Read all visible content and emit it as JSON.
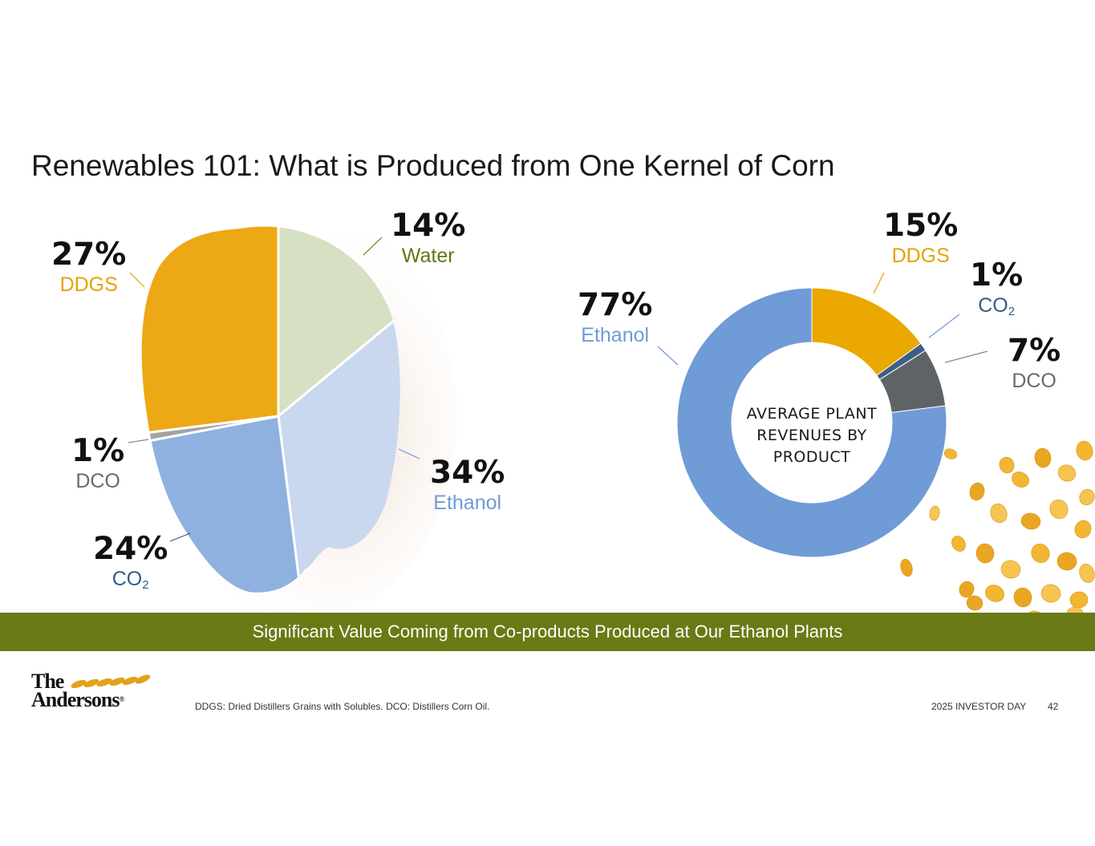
{
  "title": "Renewables 101: What is Produced from One Kernel of Corn",
  "chart_data": [
    {
      "type": "pie",
      "slices": [
        {
          "label": "Water",
          "value": 14,
          "pct_text": "14%",
          "color": "#d6e0c2"
        },
        {
          "label": "Ethanol",
          "value": 34,
          "pct_text": "34%",
          "color": "#c9d7ef"
        },
        {
          "label": "CO2",
          "value": 24,
          "pct_text": "24%",
          "color": "#8eb1df"
        },
        {
          "label": "DCO",
          "value": 1,
          "pct_text": "1%",
          "color": "#a3a3a3"
        },
        {
          "label": "DDGS",
          "value": 27,
          "pct_text": "27%",
          "color": "#eca815"
        }
      ]
    },
    {
      "type": "pie",
      "variant": "donut",
      "center_text": [
        "AVERAGE PLANT",
        "REVENUES BY",
        "PRODUCT"
      ],
      "slices": [
        {
          "label": "DDGS",
          "value": 15,
          "pct_text": "15%",
          "color": "#eaa800"
        },
        {
          "label": "CO2",
          "value": 1,
          "pct_text": "1%",
          "color": "#3e5e86"
        },
        {
          "label": "DCO",
          "value": 7,
          "pct_text": "7%",
          "color": "#606366"
        },
        {
          "label": "Ethanol",
          "value": 77,
          "pct_text": "77%",
          "color": "#6f9bd6"
        }
      ]
    }
  ],
  "label_colors": {
    "Water": "#5b7a12",
    "Ethanol": "#6f9bd6",
    "CO2": "#2f5d8a",
    "DCO": "#6a6a6a",
    "DDGS": "#e6a100"
  },
  "banner": "Significant Value Coming from Co-products Produced at Our Ethanol Plants",
  "logo": {
    "line1": "The",
    "line2": "Andersons"
  },
  "footnote": "DDGS: Dried Distillers Grains with Solubles. DCO: Distillers Corn Oil.",
  "footer_event": "2025 INVESTOR DAY",
  "page_number": "42"
}
